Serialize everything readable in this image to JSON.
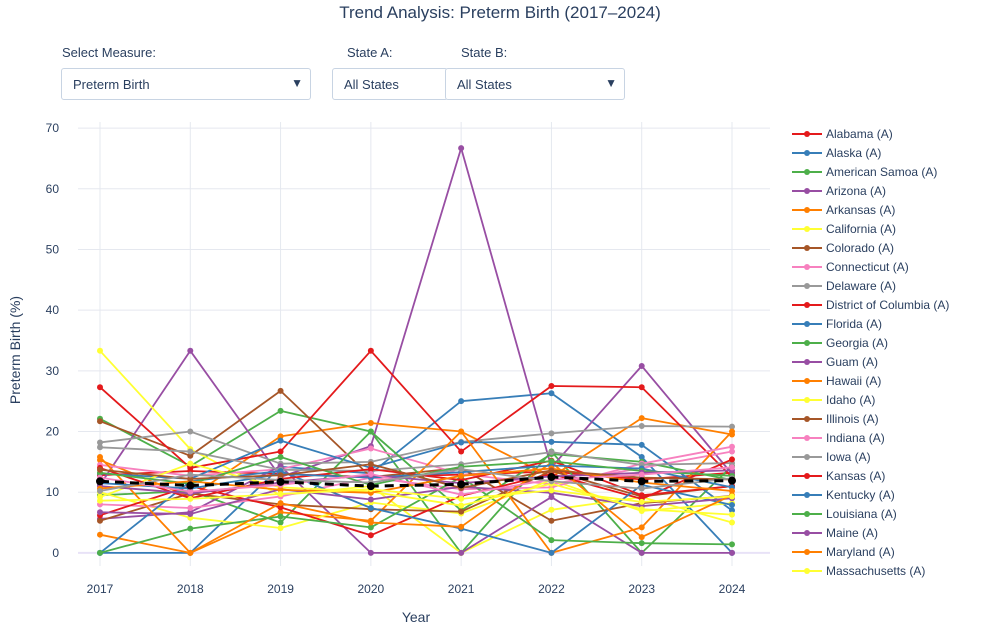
{
  "title": "Trend Analysis: Preterm Birth (2017–2024)",
  "controls": {
    "measure_label": "Select Measure:",
    "measure_value": "Preterm Birth",
    "state_a_label": "State A:",
    "state_a_value": "All States",
    "state_b_label": "State B:",
    "state_b_value": "All States"
  },
  "icons": {
    "dropdown_caret": "caret-down-icon"
  },
  "chart_data": {
    "type": "line",
    "title": "Trend Analysis: Preterm Birth (2017–2024)",
    "xlabel": "Year",
    "ylabel": "Preterm Birth (%)",
    "x": [
      2017,
      2018,
      2019,
      2020,
      2021,
      2022,
      2023,
      2024
    ],
    "ylim": [
      -1.5,
      71
    ],
    "yticks": [
      0,
      10,
      20,
      30,
      40,
      50,
      60,
      70
    ],
    "grid": true,
    "legend_position": "right",
    "series": [
      {
        "name": "Alabama (A)",
        "color": "#e41a1c",
        "values": [
          12.8,
          13.5,
          13.0,
          12.5,
          12.9,
          13.4,
          12.1,
          13.2
        ]
      },
      {
        "name": "Alaska (A)",
        "color": "#377eb8",
        "values": [
          0,
          0,
          14.2,
          13.1,
          25.0,
          26.3,
          15.8,
          0
        ]
      },
      {
        "name": "American Samoa (A)",
        "color": "#4daf4a",
        "values": [
          22.1,
          14.3,
          23.4,
          20.0,
          0,
          16.7,
          0,
          14.3
        ]
      },
      {
        "name": "Arizona (A)",
        "color": "#984ea3",
        "values": [
          11.2,
          33.3,
          12.5,
          17.6,
          66.7,
          14.1,
          30.8,
          13.0
        ]
      },
      {
        "name": "Arkansas (A)",
        "color": "#ff7f00",
        "values": [
          15.3,
          9.2,
          19.2,
          21.4,
          20.0,
          12.5,
          22.2,
          19.5
        ]
      },
      {
        "name": "California (A)",
        "color": "#ffff33",
        "values": [
          33.3,
          17.1,
          9.5,
          11.0,
          0,
          7.1,
          9.2,
          5.0
        ]
      },
      {
        "name": "Colorado (A)",
        "color": "#a65628",
        "values": [
          21.7,
          16.0,
          26.7,
          12.5,
          14.0,
          5.3,
          8.2,
          9.4
        ]
      },
      {
        "name": "Connecticut (A)",
        "color": "#f781bf",
        "values": [
          14.5,
          12.7,
          13.8,
          17.2,
          13.0,
          11.3,
          14.0,
          16.7
        ]
      },
      {
        "name": "Delaware (A)",
        "color": "#999999",
        "values": [
          18.2,
          20.0,
          14.7,
          15.0,
          18.3,
          19.7,
          20.9,
          20.8
        ]
      },
      {
        "name": "District of Columbia (A)",
        "color": "#e41a1c",
        "values": [
          27.3,
          14.0,
          16.7,
          33.3,
          16.7,
          27.5,
          27.3,
          12.5
        ]
      },
      {
        "name": "Florida (A)",
        "color": "#377eb8",
        "values": [
          13.1,
          12.2,
          18.5,
          14.0,
          18.2,
          18.3,
          17.8,
          7.0
        ]
      },
      {
        "name": "Georgia (A)",
        "color": "#4daf4a",
        "values": [
          9.5,
          10.2,
          5.0,
          20.0,
          7.0,
          16.3,
          15.0,
          12.0
        ]
      },
      {
        "name": "Guam (A)",
        "color": "#984ea3",
        "values": [
          5.6,
          6.7,
          14.3,
          0,
          0,
          9.2,
          0,
          0
        ]
      },
      {
        "name": "Hawaii (A)",
        "color": "#ff7f00",
        "values": [
          3.0,
          0,
          6.7,
          5.3,
          20.0,
          0,
          4.2,
          20.0
        ]
      },
      {
        "name": "Idaho (A)",
        "color": "#ffff33",
        "values": [
          10.0,
          5.8,
          4.1,
          8.3,
          6.5,
          12.0,
          6.9,
          8.2
        ]
      },
      {
        "name": "Illinois (A)",
        "color": "#a65628",
        "values": [
          5.3,
          9.8,
          8.0,
          7.2,
          6.8,
          13.5,
          9.3,
          11.0
        ]
      },
      {
        "name": "Indiana (A)",
        "color": "#f781bf",
        "values": [
          8.0,
          7.4,
          9.3,
          12.4,
          10.5,
          10.8,
          14.7,
          17.5
        ]
      },
      {
        "name": "Iowa (A)",
        "color": "#999999",
        "values": [
          17.4,
          16.7,
          13.7,
          13.5,
          14.6,
          16.6,
          14.5,
          14.8
        ]
      },
      {
        "name": "Kansas (A)",
        "color": "#e41a1c",
        "values": [
          6.2,
          11.0,
          7.5,
          2.9,
          9.4,
          13.0,
          8.9,
          15.4
        ]
      },
      {
        "name": "Kentucky (A)",
        "color": "#377eb8",
        "values": [
          0,
          11.8,
          13.5,
          7.4,
          4.0,
          0,
          11.2,
          7.9
        ]
      },
      {
        "name": "Louisiana (A)",
        "color": "#4daf4a",
        "values": [
          0,
          4.0,
          6.0,
          4.2,
          12.5,
          2.1,
          1.6,
          1.4
        ]
      },
      {
        "name": "Maine (A)",
        "color": "#984ea3",
        "values": [
          6.7,
          6.4,
          10.5,
          8.8,
          10.9,
          9.9,
          7.7,
          9.0
        ]
      },
      {
        "name": "Maryland (A)",
        "color": "#ff7f00",
        "values": [
          15.8,
          0,
          8.2,
          5.0,
          4.3,
          14.9,
          2.6,
          9.5
        ]
      },
      {
        "name": "Massachusetts (A)",
        "color": "#ffff33",
        "values": [
          9.2,
          14.7,
          10.8,
          10.1,
          7.8,
          11.4,
          7.2,
          6.3
        ]
      },
      {
        "name": "",
        "color": "#e41a1c",
        "values": [
          14.0,
          9.0,
          12.2,
          13.8,
          12.0,
          15.2,
          9.5,
          11.0
        ]
      },
      {
        "name": "",
        "color": "#377eb8",
        "values": [
          11.5,
          10.6,
          13.0,
          12.4,
          13.3,
          14.4,
          13.9,
          10.8
        ]
      },
      {
        "name": "",
        "color": "#4daf4a",
        "values": [
          13.2,
          11.4,
          15.8,
          11.2,
          14.2,
          15.1,
          13.5,
          12.7
        ]
      },
      {
        "name": "",
        "color": "#984ea3",
        "values": [
          11.0,
          9.8,
          11.6,
          12.8,
          11.5,
          12.6,
          13.2,
          13.6
        ]
      },
      {
        "name": "",
        "color": "#ff7f00",
        "values": [
          10.6,
          11.8,
          10.4,
          9.9,
          12.7,
          13.9,
          11.6,
          10.2
        ]
      },
      {
        "name": "",
        "color": "#a65628",
        "values": [
          13.7,
          12.2,
          12.8,
          14.6,
          10.7,
          13.6,
          12.4,
          12.1
        ]
      },
      {
        "name": "",
        "color": "#f781bf",
        "values": [
          12.4,
          10.1,
          11.2,
          13.0,
          9.6,
          12.1,
          12.9,
          14.1
        ]
      },
      {
        "name": "",
        "color": "#999999",
        "values": [
          10.2,
          12.9,
          12.0,
          11.6,
          13.8,
          11.8,
          10.6,
          12.3
        ]
      },
      {
        "name": "",
        "color": "#ffff33",
        "values": [
          8.6,
          8.9,
          9.7,
          10.5,
          8.9,
          10.3,
          8.4,
          9.3
        ]
      }
    ],
    "average": {
      "name": "",
      "color": "#000000",
      "dash": "dash",
      "values": [
        11.8,
        11.1,
        11.7,
        11.0,
        11.3,
        12.5,
        11.8,
        11.9
      ]
    },
    "legend": [
      "Alabama (A)",
      "Alaska (A)",
      "American Samoa (A)",
      "Arizona (A)",
      "Arkansas (A)",
      "California (A)",
      "Colorado (A)",
      "Connecticut (A)",
      "Delaware (A)",
      "District of Columbia (A)",
      "Florida (A)",
      "Georgia (A)",
      "Guam (A)",
      "Hawaii (A)",
      "Idaho (A)",
      "Illinois (A)",
      "Indiana (A)",
      "Iowa (A)",
      "Kansas (A)",
      "Kentucky (A)",
      "Louisiana (A)",
      "Maine (A)",
      "Maryland (A)",
      "Massachusetts (A)"
    ]
  }
}
